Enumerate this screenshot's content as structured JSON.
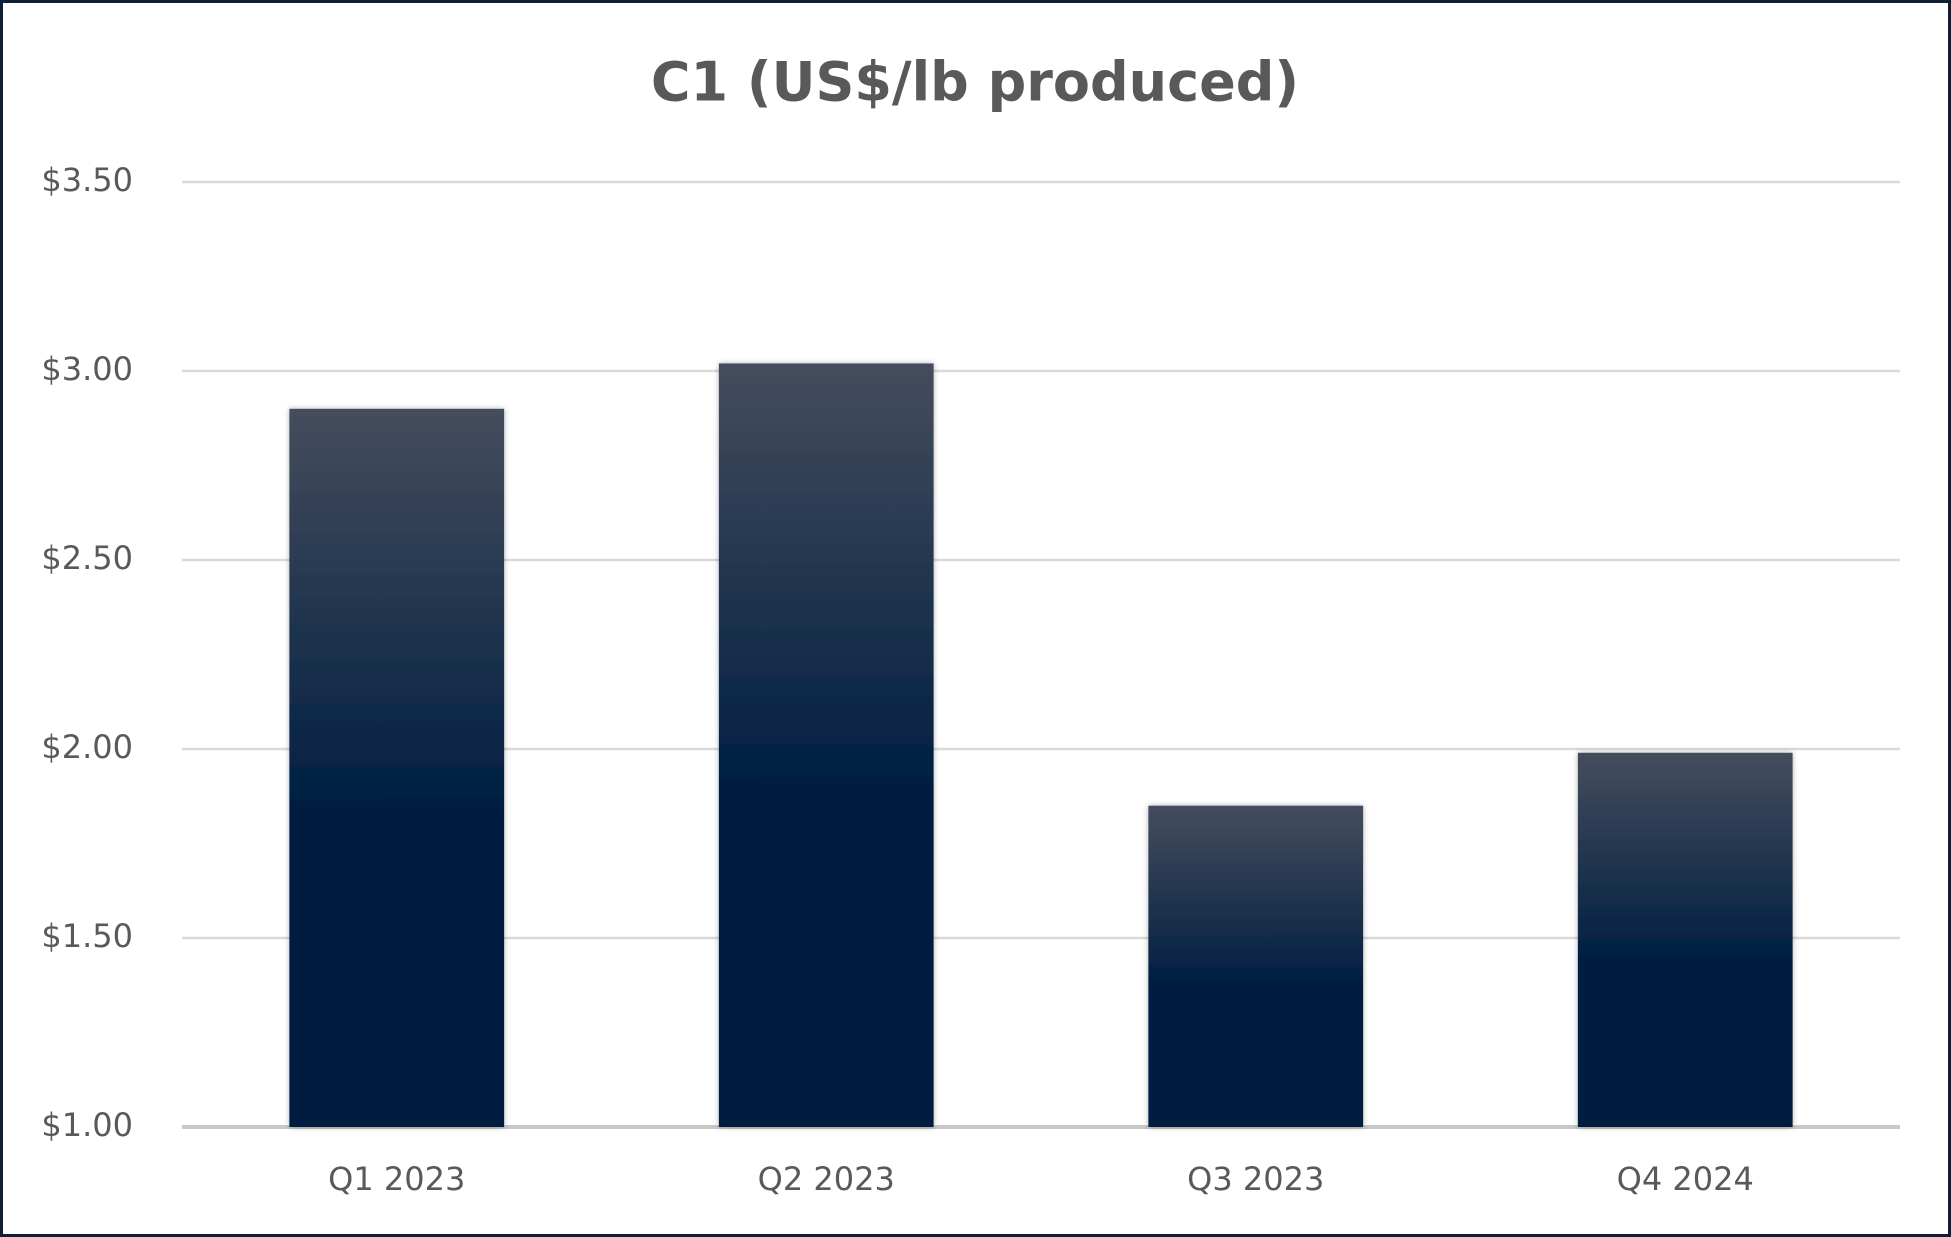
{
  "chart_data": {
    "type": "bar",
    "title": "C1 (US$/lb produced)",
    "categories": [
      "Q1 2023",
      "Q2 2023",
      "Q3 2023",
      "Q4 2024"
    ],
    "values": [
      2.9,
      3.02,
      1.85,
      1.99
    ],
    "color": "#001f41",
    "ylim": [
      1.0,
      3.5
    ],
    "yticks": [
      {
        "value": 1.0,
        "label": "$1.00"
      },
      {
        "value": 1.5,
        "label": "$1.50"
      },
      {
        "value": 2.0,
        "label": "$2.00"
      },
      {
        "value": 2.5,
        "label": "$2.50"
      },
      {
        "value": 3.0,
        "label": "$3.00"
      },
      {
        "value": 3.5,
        "label": "$3.50"
      }
    ],
    "grid": true
  }
}
